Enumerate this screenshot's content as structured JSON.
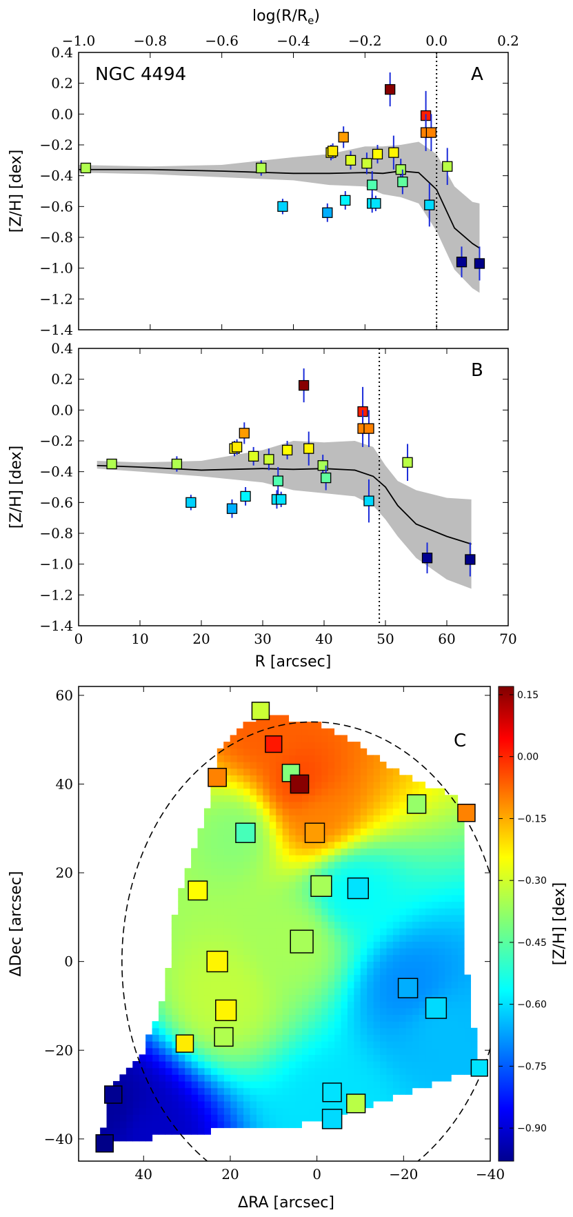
{
  "chart_data": [
    {
      "id": "A",
      "type": "scatter",
      "panel_label": "A",
      "title": "NGC 4494",
      "xlabel_top": "log(R/R",
      "xlabel_top_sub": "e",
      "xlabel_top_close": ")",
      "ylabel": "[Z/H] [dex]",
      "xlim": [
        -1.0,
        0.2
      ],
      "ylim": [
        -1.4,
        0.4
      ],
      "xticks": [
        -1.0,
        -0.8,
        -0.6,
        -0.4,
        -0.2,
        0.0,
        0.2
      ],
      "xtick_labels": [
        "−1.0",
        "−0.8",
        "−0.6",
        "−0.4",
        "−0.2",
        "0.0",
        "0.2"
      ],
      "yticks": [
        -1.4,
        -1.2,
        -1.0,
        -0.8,
        -0.6,
        -0.4,
        -0.2,
        0.0,
        0.2,
        0.4
      ],
      "ytick_labels": [
        "−1.4",
        "−1.2",
        "−1.0",
        "−0.8",
        "−0.6",
        "−0.4",
        "−0.2",
        "0.0",
        "0.2",
        "0.4"
      ],
      "vline_x": 0.0,
      "points": [
        {
          "x": -0.98,
          "y": -0.35,
          "err": 0.03
        },
        {
          "x": -0.49,
          "y": -0.35,
          "err": 0.05
        },
        {
          "x": -0.43,
          "y": -0.6,
          "err": 0.05
        },
        {
          "x": -0.305,
          "y": -0.64,
          "err": 0.06
        },
        {
          "x": -0.295,
          "y": -0.25,
          "err": 0.05
        },
        {
          "x": -0.29,
          "y": -0.24,
          "err": 0.05
        },
        {
          "x": -0.26,
          "y": -0.15,
          "err": 0.07
        },
        {
          "x": -0.255,
          "y": -0.56,
          "err": 0.06
        },
        {
          "x": -0.24,
          "y": -0.3,
          "err": 0.06
        },
        {
          "x": -0.195,
          "y": -0.32,
          "err": 0.07
        },
        {
          "x": -0.18,
          "y": -0.46,
          "err": 0.09
        },
        {
          "x": -0.18,
          "y": -0.58,
          "err": 0.06
        },
        {
          "x": -0.17,
          "y": -0.58,
          "err": 0.05
        },
        {
          "x": -0.165,
          "y": -0.26,
          "err": 0.06
        },
        {
          "x": -0.13,
          "y": 0.16,
          "err": 0.11
        },
        {
          "x": -0.12,
          "y": -0.25,
          "err": 0.11
        },
        {
          "x": -0.1,
          "y": -0.36,
          "err": 0.07
        },
        {
          "x": -0.095,
          "y": -0.44,
          "err": 0.08
        },
        {
          "x": -0.03,
          "y": -0.01,
          "err": 0.16
        },
        {
          "x": -0.03,
          "y": -0.12,
          "err": 0.12
        },
        {
          "x": -0.015,
          "y": -0.12,
          "err": 0.12
        },
        {
          "x": -0.02,
          "y": -0.59,
          "err": 0.14
        },
        {
          "x": 0.03,
          "y": -0.34,
          "err": 0.12
        },
        {
          "x": 0.07,
          "y": -0.96,
          "err": 0.1
        },
        {
          "x": 0.12,
          "y": -0.97,
          "err": 0.11
        }
      ],
      "trend_x": [
        -1.0,
        -0.8,
        -0.6,
        -0.4,
        -0.3,
        -0.2,
        -0.15,
        -0.1,
        -0.05,
        0.0,
        0.05,
        0.1,
        0.12
      ],
      "trend_y": [
        -0.36,
        -0.36,
        -0.37,
        -0.385,
        -0.385,
        -0.38,
        -0.385,
        -0.37,
        -0.38,
        -0.49,
        -0.74,
        -0.84,
        -0.87
      ],
      "band_upper": [
        -0.33,
        -0.34,
        -0.33,
        -0.28,
        -0.26,
        -0.21,
        -0.21,
        -0.2,
        -0.18,
        -0.26,
        -0.47,
        -0.57,
        -0.58
      ],
      "band_lower": [
        -0.38,
        -0.39,
        -0.41,
        -0.43,
        -0.46,
        -0.47,
        -0.52,
        -0.54,
        -0.58,
        -0.76,
        -1.01,
        -1.13,
        -1.16
      ]
    },
    {
      "id": "B",
      "type": "scatter",
      "panel_label": "B",
      "xlabel": "R [arcsec]",
      "ylabel": "[Z/H] [dex]",
      "xlim": [
        0,
        70
      ],
      "ylim": [
        -1.4,
        0.4
      ],
      "xticks": [
        0,
        10,
        20,
        30,
        40,
        50,
        60,
        70
      ],
      "xtick_labels": [
        "0",
        "10",
        "20",
        "30",
        "40",
        "50",
        "60",
        "70"
      ],
      "yticks": [
        -1.4,
        -1.2,
        -1.0,
        -0.8,
        -0.6,
        -0.4,
        -0.2,
        0.0,
        0.2,
        0.4
      ],
      "ytick_labels": [
        "−1.4",
        "−1.2",
        "−1.0",
        "−0.8",
        "−0.6",
        "−0.4",
        "−0.2",
        "0.0",
        "0.2",
        "0.4"
      ],
      "vline_x": 49,
      "points": [
        {
          "x": 5.4,
          "y": -0.35,
          "err": 0.03
        },
        {
          "x": 16.0,
          "y": -0.35,
          "err": 0.05
        },
        {
          "x": 18.3,
          "y": -0.6,
          "err": 0.05
        },
        {
          "x": 25.0,
          "y": -0.64,
          "err": 0.06
        },
        {
          "x": 25.4,
          "y": -0.25,
          "err": 0.05
        },
        {
          "x": 25.8,
          "y": -0.24,
          "err": 0.05
        },
        {
          "x": 27.0,
          "y": -0.15,
          "err": 0.07
        },
        {
          "x": 27.2,
          "y": -0.56,
          "err": 0.06
        },
        {
          "x": 28.5,
          "y": -0.3,
          "err": 0.06
        },
        {
          "x": 31.0,
          "y": -0.32,
          "err": 0.07
        },
        {
          "x": 32.5,
          "y": -0.46,
          "err": 0.09
        },
        {
          "x": 32.3,
          "y": -0.58,
          "err": 0.06
        },
        {
          "x": 33.0,
          "y": -0.58,
          "err": 0.05
        },
        {
          "x": 34.0,
          "y": -0.26,
          "err": 0.06
        },
        {
          "x": 36.7,
          "y": 0.16,
          "err": 0.11
        },
        {
          "x": 37.5,
          "y": -0.25,
          "err": 0.11
        },
        {
          "x": 39.8,
          "y": -0.36,
          "err": 0.07
        },
        {
          "x": 40.3,
          "y": -0.44,
          "err": 0.08
        },
        {
          "x": 46.3,
          "y": -0.01,
          "err": 0.16
        },
        {
          "x": 46.3,
          "y": -0.12,
          "err": 0.12
        },
        {
          "x": 47.3,
          "y": -0.12,
          "err": 0.12
        },
        {
          "x": 47.3,
          "y": -0.59,
          "err": 0.14
        },
        {
          "x": 53.6,
          "y": -0.34,
          "err": 0.12
        },
        {
          "x": 56.8,
          "y": -0.96,
          "err": 0.1
        },
        {
          "x": 63.8,
          "y": -0.97,
          "err": 0.11
        }
      ],
      "trend_x": [
        3,
        10,
        20,
        30,
        35,
        40,
        45,
        48,
        50,
        52,
        55,
        60,
        64
      ],
      "trend_y": [
        -0.36,
        -0.37,
        -0.39,
        -0.38,
        -0.385,
        -0.38,
        -0.39,
        -0.43,
        -0.5,
        -0.62,
        -0.74,
        -0.82,
        -0.87
      ],
      "band_upper": [
        -0.33,
        -0.34,
        -0.33,
        -0.26,
        -0.2,
        -0.21,
        -0.2,
        -0.24,
        -0.36,
        -0.46,
        -0.52,
        -0.57,
        -0.58
      ],
      "band_lower": [
        -0.38,
        -0.4,
        -0.43,
        -0.47,
        -0.52,
        -0.54,
        -0.56,
        -0.62,
        -0.71,
        -0.82,
        -0.96,
        -1.1,
        -1.16
      ]
    },
    {
      "id": "C",
      "type": "heatmap",
      "panel_label": "C",
      "xlabel": "ΔRA [arcsec]",
      "ylabel": "ΔDec [arcsec]",
      "xlim": [
        55,
        -40
      ],
      "ylim": [
        -45,
        62
      ],
      "xticks": [
        40,
        20,
        0,
        -20,
        -40
      ],
      "xtick_labels": [
        "40",
        "20",
        "0",
        "−20",
        "−40"
      ],
      "yticks": [
        -40,
        -20,
        0,
        20,
        40,
        60
      ],
      "ytick_labels": [
        "−40",
        "−20",
        "0",
        "20",
        "40",
        "60"
      ],
      "colorbar_label": "[Z/H] [dex]",
      "colorbar_range": [
        -0.98,
        0.17
      ],
      "colorbar_ticks": [
        0.15,
        0.0,
        -0.15,
        -0.3,
        -0.45,
        -0.6,
        -0.75,
        -0.9
      ],
      "colorbar_tick_labels": [
        "0.15",
        "0.00",
        "−0.15",
        "−0.30",
        "−0.45",
        "−0.60",
        "−0.75",
        "−0.90"
      ],
      "ellipse": {
        "center": [
          1,
          0
        ],
        "semi_x": 44,
        "semi_y": 54
      },
      "field_boundary": [
        [
          23.5,
          42
        ],
        [
          23,
          47
        ],
        [
          19,
          52
        ],
        [
          12,
          56
        ],
        [
          5,
          54.5
        ],
        [
          0,
          54
        ],
        [
          -6,
          51
        ],
        [
          -12,
          47
        ],
        [
          -18,
          43
        ],
        [
          -25,
          40
        ],
        [
          -32,
          37
        ],
        [
          -34,
          33
        ],
        [
          -34.5,
          26
        ],
        [
          -34,
          10
        ],
        [
          -35,
          -8
        ],
        [
          -36.5,
          -16
        ],
        [
          -37,
          -25
        ],
        [
          -28,
          -27
        ],
        [
          -20,
          -30
        ],
        [
          -10,
          -33
        ],
        [
          0,
          -36
        ],
        [
          8,
          -38
        ],
        [
          20,
          -38
        ],
        [
          30,
          -38.5
        ],
        [
          40,
          -40
        ],
        [
          49.5,
          -40
        ],
        [
          49,
          -35
        ],
        [
          46,
          -27
        ],
        [
          40,
          -20
        ],
        [
          36,
          -10
        ],
        [
          34,
          0
        ],
        [
          33,
          10
        ],
        [
          30,
          20
        ],
        [
          27,
          30
        ],
        [
          25,
          36
        ]
      ],
      "field_sources": [
        {
          "x": 4,
          "y": 40,
          "z": -0.05
        },
        {
          "x": 12,
          "y": 52,
          "z": -0.08
        },
        {
          "x": 0,
          "y": 33,
          "z": -0.12
        },
        {
          "x": -8,
          "y": 16,
          "z": -0.55
        },
        {
          "x": -22,
          "y": -6,
          "z": -0.68
        },
        {
          "x": 18,
          "y": 29,
          "z": -0.4
        },
        {
          "x": 47,
          "y": -34,
          "z": -0.95
        },
        {
          "x": 40,
          "y": -38,
          "z": -0.9
        },
        {
          "x": -28,
          "y": -14,
          "z": -0.62
        },
        {
          "x": -4,
          "y": -33,
          "z": -0.58
        },
        {
          "x": 5,
          "y": 5,
          "z": -0.36
        },
        {
          "x": 22,
          "y": -8,
          "z": -0.33
        }
      ],
      "points": [
        {
          "x": 13,
          "y": 56.5,
          "z": -0.32,
          "s": 0.75
        },
        {
          "x": 10,
          "y": 49,
          "z": 0.0,
          "s": 0.65
        },
        {
          "x": 6,
          "y": 42.5,
          "z": -0.4,
          "s": 0.75
        },
        {
          "x": 4,
          "y": 40,
          "z": 0.16,
          "s": 0.85
        },
        {
          "x": 23,
          "y": 41.5,
          "z": -0.12,
          "s": 0.85
        },
        {
          "x": 16.5,
          "y": 29,
          "z": -0.47,
          "s": 1.0
        },
        {
          "x": 0.5,
          "y": 29,
          "z": -0.15,
          "s": 1.0
        },
        {
          "x": -23,
          "y": 35.5,
          "z": -0.38,
          "s": 0.9
        },
        {
          "x": -34.5,
          "y": 33.5,
          "z": -0.12,
          "s": 0.75
        },
        {
          "x": 27.5,
          "y": 16,
          "z": -0.26,
          "s": 0.95
        },
        {
          "x": -1,
          "y": 17,
          "z": -0.36,
          "s": 1.15
        },
        {
          "x": -9.5,
          "y": 16.5,
          "z": -0.58,
          "s": 1.15
        },
        {
          "x": 3.5,
          "y": 4.5,
          "z": -0.36,
          "s": 1.4
        },
        {
          "x": 23,
          "y": 0,
          "z": -0.25,
          "s": 1.15
        },
        {
          "x": 21,
          "y": -11,
          "z": -0.25,
          "s": 1.15
        },
        {
          "x": -21,
          "y": -6,
          "z": -0.64,
          "s": 1.0
        },
        {
          "x": -27.5,
          "y": -10.5,
          "z": -0.59,
          "s": 1.15
        },
        {
          "x": 21.5,
          "y": -17,
          "z": -0.35,
          "s": 0.9
        },
        {
          "x": 30.5,
          "y": -18.5,
          "z": -0.24,
          "s": 0.75
        },
        {
          "x": -37.5,
          "y": -24,
          "z": -0.58,
          "s": 0.65
        },
        {
          "x": -3.5,
          "y": -29.5,
          "z": -0.58,
          "s": 0.9
        },
        {
          "x": -9,
          "y": -32,
          "z": -0.34,
          "s": 0.9
        },
        {
          "x": -3.5,
          "y": -35.5,
          "z": -0.59,
          "s": 1.0
        },
        {
          "x": 47,
          "y": -30,
          "z": -0.96,
          "s": 0.75
        },
        {
          "x": 49,
          "y": -41,
          "z": -0.97,
          "s": 0.75
        }
      ]
    }
  ]
}
